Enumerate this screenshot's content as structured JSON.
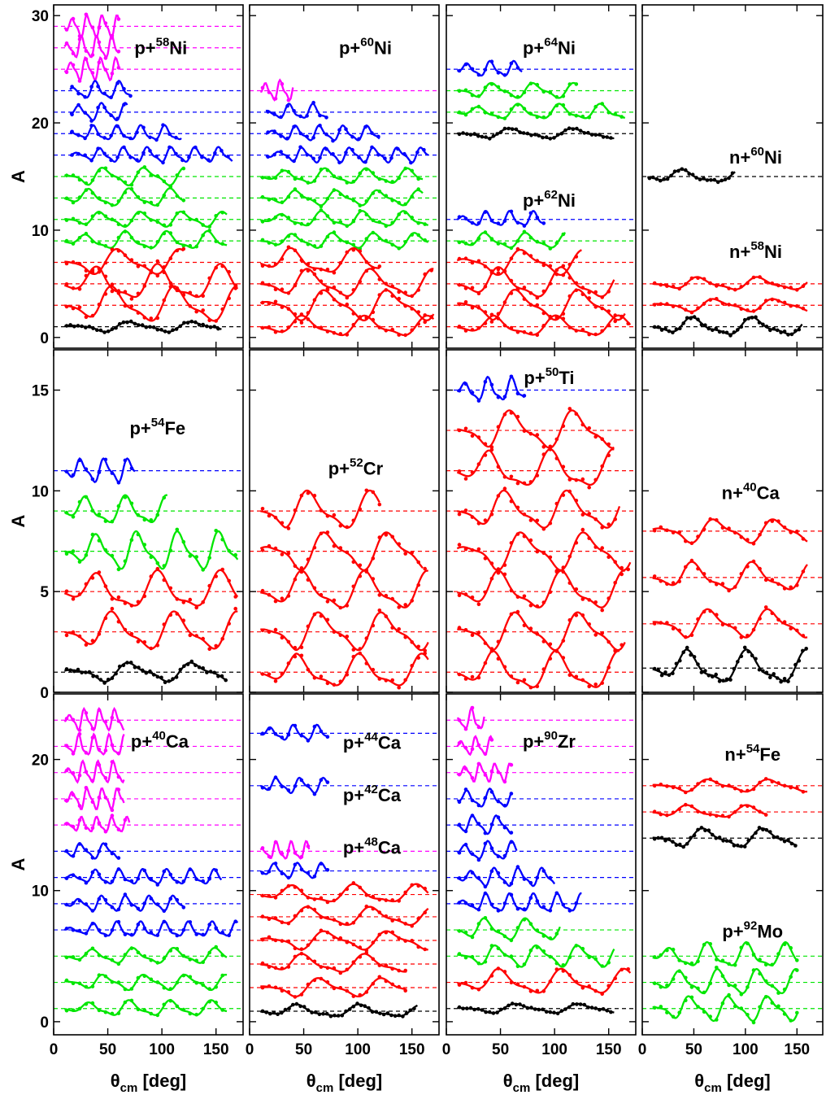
{
  "chart_data": {
    "type": "line",
    "ylabel": "A",
    "xlabel": {
      "main": "θ",
      "sub": "cm",
      "rest": " [deg]"
    },
    "xlim": [
      0,
      175
    ],
    "xticks": [
      0,
      50,
      100,
      150
    ],
    "colors": {
      "magenta": "#ff00ff",
      "blue": "#0000ff",
      "green": "#00e600",
      "red": "#ff0000",
      "black": "#000000"
    },
    "rows": [
      {
        "ylim": [
          -1,
          31
        ],
        "yticks": [
          0,
          10,
          20,
          30
        ]
      },
      {
        "ylim": [
          0,
          17
        ],
        "yticks": [
          0,
          5,
          10,
          15
        ]
      },
      {
        "ylim": [
          -1,
          25
        ],
        "yticks": [
          0,
          10,
          20
        ]
      }
    ],
    "panels": [
      {
        "row": 0,
        "col": 0,
        "labels": [
          {
            "a": "p+",
            "sup": "58",
            "b": "Ni",
            "x": 99,
            "y": 26.4
          }
        ],
        "curves": [
          {
            "b": 29,
            "c": "magenta",
            "x0": 10,
            "x1": 60,
            "amp": 0.9
          },
          {
            "b": 27,
            "c": "magenta",
            "x0": 10,
            "x1": 60,
            "amp": 0.9
          },
          {
            "b": 25,
            "c": "magenta",
            "x0": 10,
            "x1": 60,
            "amp": 0.9
          },
          {
            "b": 23,
            "c": "blue",
            "x0": 15,
            "x1": 72,
            "amp": 0.7
          },
          {
            "b": 21,
            "c": "blue",
            "x0": 15,
            "x1": 68,
            "amp": 0.7
          },
          {
            "b": 19,
            "c": "blue",
            "x0": 15,
            "x1": 118,
            "amp": 0.6
          },
          {
            "b": 17,
            "c": "blue",
            "x0": 15,
            "x1": 165,
            "amp": 0.6
          },
          {
            "b": 15,
            "c": "green",
            "x0": 10,
            "x1": 120,
            "amp": 0.7
          },
          {
            "b": 13,
            "c": "green",
            "x0": 10,
            "x1": 120,
            "amp": 0.7
          },
          {
            "b": 11,
            "c": "green",
            "x0": 10,
            "x1": 160,
            "amp": 0.6
          },
          {
            "b": 9,
            "c": "green",
            "x0": 10,
            "x1": 160,
            "amp": 0.7
          },
          {
            "b": 7,
            "c": "red",
            "x0": 10,
            "x1": 120,
            "amp": 1.0
          },
          {
            "b": 5,
            "c": "red",
            "x0": 10,
            "x1": 170,
            "amp": 1.4
          },
          {
            "b": 3,
            "c": "red",
            "x0": 10,
            "x1": 170,
            "amp": 1.4
          },
          {
            "b": 1,
            "c": "black",
            "x0": 10,
            "x1": 155,
            "amp": 0.4
          }
        ]
      },
      {
        "row": 0,
        "col": 1,
        "labels": [
          {
            "a": "p+",
            "sup": "60",
            "b": "Ni",
            "x": 107,
            "y": 26.4
          }
        ],
        "curves": [
          {
            "b": 23,
            "c": "magenta",
            "x0": 10,
            "x1": 40,
            "amp": 0.8
          },
          {
            "b": 21,
            "c": "blue",
            "x0": 15,
            "x1": 72,
            "amp": 0.6
          },
          {
            "b": 19,
            "c": "blue",
            "x0": 15,
            "x1": 120,
            "amp": 0.6
          },
          {
            "b": 17,
            "c": "blue",
            "x0": 15,
            "x1": 165,
            "amp": 0.6
          },
          {
            "b": 15,
            "c": "green",
            "x0": 10,
            "x1": 160,
            "amp": 0.6
          },
          {
            "b": 13,
            "c": "green",
            "x0": 10,
            "x1": 160,
            "amp": 0.6
          },
          {
            "b": 11,
            "c": "green",
            "x0": 10,
            "x1": 165,
            "amp": 0.6
          },
          {
            "b": 9,
            "c": "green",
            "x0": 10,
            "x1": 165,
            "amp": 0.6
          },
          {
            "b": 7,
            "c": "red",
            "x0": 10,
            "x1": 120,
            "amp": 1.0
          },
          {
            "b": 5,
            "c": "red",
            "x0": 10,
            "x1": 170,
            "amp": 1.1
          },
          {
            "b": 3,
            "c": "red",
            "x0": 10,
            "x1": 170,
            "amp": 1.2
          },
          {
            "b": 1,
            "c": "red",
            "x0": 10,
            "x1": 170,
            "amp": 0.8
          }
        ]
      },
      {
        "row": 0,
        "col": 2,
        "labels": [
          {
            "a": "p+",
            "sup": "64",
            "b": "Ni",
            "x": 95,
            "y": 26.4
          },
          {
            "a": "p+",
            "sup": "62",
            "b": "Ni",
            "x": 95,
            "y": 12.2
          }
        ],
        "curves": [
          {
            "b": 25,
            "c": "blue",
            "x0": 10,
            "x1": 70,
            "amp": 0.6
          },
          {
            "b": 23,
            "c": "green",
            "x0": 10,
            "x1": 120,
            "amp": 0.6
          },
          {
            "b": 21,
            "c": "green",
            "x0": 10,
            "x1": 165,
            "amp": 0.6
          },
          {
            "b": 19,
            "c": "black",
            "x0": 10,
            "x1": 155,
            "amp": 0.4
          },
          {
            "b": 11,
            "c": "blue",
            "x0": 10,
            "x1": 90,
            "amp": 0.6
          },
          {
            "b": 9,
            "c": "green",
            "x0": 10,
            "x1": 110,
            "amp": 0.6
          },
          {
            "b": 7,
            "c": "red",
            "x0": 10,
            "x1": 125,
            "amp": 1.0
          },
          {
            "b": 5,
            "c": "red",
            "x0": 10,
            "x1": 155,
            "amp": 1.2
          },
          {
            "b": 3,
            "c": "red",
            "x0": 10,
            "x1": 165,
            "amp": 1.2
          },
          {
            "b": 1,
            "c": "red",
            "x0": 10,
            "x1": 170,
            "amp": 0.8
          }
        ]
      },
      {
        "row": 0,
        "col": 3,
        "labels": [
          {
            "a": "n+",
            "sup": "60",
            "b": "Ni",
            "x": 110,
            "y": 16.2
          },
          {
            "a": "n+",
            "sup": "58",
            "b": "Ni",
            "x": 110,
            "y": 7.4
          }
        ],
        "curves": [
          {
            "b": 15,
            "c": "black",
            "x0": 5,
            "x1": 90,
            "amp": 0.5
          },
          {
            "b": 5,
            "c": "red",
            "x0": 10,
            "x1": 160,
            "amp": 0.5
          },
          {
            "b": 3,
            "c": "red",
            "x0": 10,
            "x1": 160,
            "amp": 0.5
          },
          {
            "b": 1,
            "c": "black",
            "x0": 10,
            "x1": 155,
            "amp": 0.7
          }
        ]
      },
      {
        "row": 1,
        "col": 0,
        "labels": [
          {
            "a": "p+",
            "sup": "54",
            "b": "Fe",
            "x": 96,
            "y": 12.8
          }
        ],
        "curves": [
          {
            "b": 11,
            "c": "blue",
            "x0": 10,
            "x1": 75,
            "amp": 0.5
          },
          {
            "b": 9,
            "c": "green",
            "x0": 10,
            "x1": 105,
            "amp": 0.6
          },
          {
            "b": 7,
            "c": "green",
            "x0": 10,
            "x1": 170,
            "amp": 0.8
          },
          {
            "b": 5,
            "c": "red",
            "x0": 10,
            "x1": 170,
            "amp": 0.8
          },
          {
            "b": 3,
            "c": "red",
            "x0": 10,
            "x1": 170,
            "amp": 0.8
          },
          {
            "b": 1,
            "c": "black",
            "x0": 10,
            "x1": 160,
            "amp": 0.4
          }
        ]
      },
      {
        "row": 1,
        "col": 1,
        "labels": [
          {
            "a": "p+",
            "sup": "52",
            "b": "Cr",
            "x": 98,
            "y": 10.8
          }
        ],
        "curves": [
          {
            "b": 9,
            "c": "red",
            "x0": 10,
            "x1": 120,
            "amp": 0.8
          },
          {
            "b": 7,
            "c": "red",
            "x0": 10,
            "x1": 160,
            "amp": 0.8
          },
          {
            "b": 5,
            "c": "red",
            "x0": 10,
            "x1": 165,
            "amp": 0.8
          },
          {
            "b": 3,
            "c": "red",
            "x0": 10,
            "x1": 165,
            "amp": 0.8
          },
          {
            "b": 1,
            "c": "red",
            "x0": 10,
            "x1": 165,
            "amp": 0.7
          }
        ]
      },
      {
        "row": 1,
        "col": 2,
        "labels": [
          {
            "a": "p+",
            "sup": "50",
            "b": "Ti",
            "x": 95,
            "y": 15.3
          }
        ],
        "curves": [
          {
            "b": 15,
            "c": "blue",
            "x0": 10,
            "x1": 72,
            "amp": 0.5
          },
          {
            "b": 13,
            "c": "red",
            "x0": 10,
            "x1": 155,
            "amp": 0.8
          },
          {
            "b": 11,
            "c": "red",
            "x0": 10,
            "x1": 155,
            "amp": 0.8
          },
          {
            "b": 9,
            "c": "red",
            "x0": 10,
            "x1": 160,
            "amp": 0.8
          },
          {
            "b": 7,
            "c": "red",
            "x0": 10,
            "x1": 170,
            "amp": 0.8
          },
          {
            "b": 5,
            "c": "red",
            "x0": 10,
            "x1": 165,
            "amp": 0.8
          },
          {
            "b": 3,
            "c": "red",
            "x0": 10,
            "x1": 165,
            "amp": 0.8
          },
          {
            "b": 1,
            "c": "red",
            "x0": 10,
            "x1": 160,
            "amp": 0.8
          }
        ]
      },
      {
        "row": 1,
        "col": 3,
        "labels": [
          {
            "a": "n+",
            "sup": "40",
            "b": "Ca",
            "x": 105,
            "y": 9.6
          }
        ],
        "curves": [
          {
            "b": 8,
            "c": "red",
            "x0": 10,
            "x1": 160,
            "amp": 0.5
          },
          {
            "b": 5.7,
            "c": "red",
            "x0": 10,
            "x1": 160,
            "amp": 0.6
          },
          {
            "b": 3.4,
            "c": "red",
            "x0": 10,
            "x1": 160,
            "amp": 0.6
          },
          {
            "b": 1.2,
            "c": "black",
            "x0": 10,
            "x1": 160,
            "amp": 0.7
          }
        ]
      },
      {
        "row": 2,
        "col": 0,
        "labels": [
          {
            "a": "p+",
            "sup": "40",
            "b": "Ca",
            "x": 98,
            "y": 20.9
          }
        ],
        "curves": [
          {
            "b": 23,
            "c": "magenta",
            "x0": 10,
            "x1": 65,
            "amp": 0.7
          },
          {
            "b": 21,
            "c": "magenta",
            "x0": 10,
            "x1": 65,
            "amp": 0.7
          },
          {
            "b": 19,
            "c": "magenta",
            "x0": 10,
            "x1": 65,
            "amp": 0.7
          },
          {
            "b": 17,
            "c": "magenta",
            "x0": 10,
            "x1": 65,
            "amp": 0.7
          },
          {
            "b": 15,
            "c": "magenta",
            "x0": 10,
            "x1": 70,
            "amp": 0.5
          },
          {
            "b": 13,
            "c": "blue",
            "x0": 10,
            "x1": 60,
            "amp": 0.5
          },
          {
            "b": 11,
            "c": "blue",
            "x0": 10,
            "x1": 155,
            "amp": 0.5
          },
          {
            "b": 9,
            "c": "blue",
            "x0": 10,
            "x1": 120,
            "amp": 0.5
          },
          {
            "b": 7,
            "c": "blue",
            "x0": 10,
            "x1": 170,
            "amp": 0.5
          },
          {
            "b": 5,
            "c": "green",
            "x0": 10,
            "x1": 160,
            "amp": 0.5
          },
          {
            "b": 3,
            "c": "green",
            "x0": 10,
            "x1": 160,
            "amp": 0.5
          },
          {
            "b": 1,
            "c": "green",
            "x0": 10,
            "x1": 160,
            "amp": 0.5
          }
        ]
      },
      {
        "row": 2,
        "col": 1,
        "labels": [
          {
            "a": "p+",
            "sup": "44",
            "b": "Ca",
            "x": 113,
            "y": 20.8
          },
          {
            "a": "p+",
            "sup": "42",
            "b": "Ca",
            "x": 113,
            "y": 16.8
          },
          {
            "a": "p+",
            "sup": "48",
            "b": "Ca",
            "x": 113,
            "y": 12.8
          }
        ],
        "curves": [
          {
            "b": 22,
            "c": "blue",
            "x0": 10,
            "x1": 72,
            "amp": 0.5
          },
          {
            "b": 18,
            "c": "blue",
            "x0": 10,
            "x1": 72,
            "amp": 0.5
          },
          {
            "b": 13,
            "c": "magenta",
            "x0": 10,
            "x1": 55,
            "amp": 0.6
          },
          {
            "b": 11.5,
            "c": "blue",
            "x0": 10,
            "x1": 72,
            "amp": 0.5
          },
          {
            "b": 9.7,
            "c": "red",
            "x0": 10,
            "x1": 165,
            "amp": 0.6
          },
          {
            "b": 8.0,
            "c": "red",
            "x0": 10,
            "x1": 165,
            "amp": 0.6
          },
          {
            "b": 6.2,
            "c": "red",
            "x0": 10,
            "x1": 165,
            "amp": 0.6
          },
          {
            "b": 4.4,
            "c": "red",
            "x0": 10,
            "x1": 145,
            "amp": 0.6
          },
          {
            "b": 2.6,
            "c": "red",
            "x0": 10,
            "x1": 145,
            "amp": 0.6
          },
          {
            "b": 0.8,
            "c": "black",
            "x0": 10,
            "x1": 155,
            "amp": 0.4
          }
        ]
      },
      {
        "row": 2,
        "col": 2,
        "labels": [
          {
            "a": "p+",
            "sup": "90",
            "b": "Zr",
            "x": 95,
            "y": 20.9
          }
        ],
        "curves": [
          {
            "b": 23,
            "c": "magenta",
            "x0": 10,
            "x1": 35,
            "amp": 0.7
          },
          {
            "b": 21,
            "c": "magenta",
            "x0": 10,
            "x1": 42,
            "amp": 0.6
          },
          {
            "b": 19,
            "c": "magenta",
            "x0": 10,
            "x1": 60,
            "amp": 0.6
          },
          {
            "b": 17,
            "c": "blue",
            "x0": 10,
            "x1": 60,
            "amp": 0.6
          },
          {
            "b": 15,
            "c": "blue",
            "x0": 10,
            "x1": 60,
            "amp": 0.6
          },
          {
            "b": 13,
            "c": "blue",
            "x0": 10,
            "x1": 65,
            "amp": 0.6
          },
          {
            "b": 11,
            "c": "blue",
            "x0": 10,
            "x1": 100,
            "amp": 0.6
          },
          {
            "b": 9,
            "c": "blue",
            "x0": 10,
            "x1": 125,
            "amp": 0.6
          },
          {
            "b": 7,
            "c": "green",
            "x0": 10,
            "x1": 105,
            "amp": 0.7
          },
          {
            "b": 5,
            "c": "green",
            "x0": 10,
            "x1": 155,
            "amp": 0.7
          },
          {
            "b": 3,
            "c": "red",
            "x0": 10,
            "x1": 170,
            "amp": 0.8
          },
          {
            "b": 1,
            "c": "black",
            "x0": 10,
            "x1": 155,
            "amp": 0.3
          }
        ]
      },
      {
        "row": 2,
        "col": 3,
        "labels": [
          {
            "a": "n+",
            "sup": "54",
            "b": "Fe",
            "x": 107,
            "y": 19.9
          },
          {
            "a": "p+",
            "sup": "92",
            "b": "Mo",
            "x": 107,
            "y": 6.4
          }
        ],
        "curves": [
          {
            "b": 18,
            "c": "red",
            "x0": 10,
            "x1": 160,
            "amp": 0.4
          },
          {
            "b": 16,
            "c": "red",
            "x0": 10,
            "x1": 120,
            "amp": 0.4
          },
          {
            "b": 14,
            "c": "black",
            "x0": 10,
            "x1": 150,
            "amp": 0.6
          },
          {
            "b": 5,
            "c": "green",
            "x0": 10,
            "x1": 150,
            "amp": 0.8
          },
          {
            "b": 3,
            "c": "green",
            "x0": 10,
            "x1": 150,
            "amp": 0.8
          },
          {
            "b": 1,
            "c": "green",
            "x0": 10,
            "x1": 150,
            "amp": 0.8
          }
        ]
      }
    ]
  }
}
